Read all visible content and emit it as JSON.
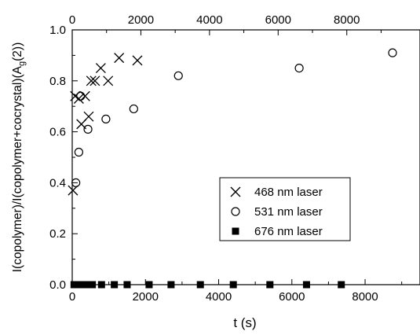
{
  "chart_data": {
    "type": "scatter",
    "xlabel": "t (s)",
    "ylabel": "I(copolymer)/I(copolymer+cocrystal)(A",
    "ylabel_sub": "g",
    "ylabel_suffix": "(2))",
    "xlim": [
      0,
      9500
    ],
    "ylim": [
      0.0,
      1.0
    ],
    "x_ticks": [
      0,
      2000,
      4000,
      6000,
      8000
    ],
    "x_tick_labels": [
      "0",
      "2000",
      "4000",
      "6000",
      "8000"
    ],
    "top_x_ticks": [
      0,
      2000,
      4000,
      6000,
      8000
    ],
    "top_x_tick_labels": [
      "0",
      "2000",
      "4000",
      "6000",
      "8000"
    ],
    "top_x_scale": 0.9375,
    "y_ticks": [
      0.0,
      0.2,
      0.4,
      0.6,
      0.8,
      1.0
    ],
    "y_tick_labels": [
      "0.0",
      "0.2",
      "0.4",
      "0.6",
      "0.8",
      "1.0"
    ],
    "grid": false,
    "legend_position": "center-right",
    "series": [
      {
        "name": "468 nm laser",
        "marker": "x",
        "color": "#000000",
        "points": [
          [
            20,
            0.37
          ],
          [
            80,
            0.74
          ],
          [
            180,
            0.73
          ],
          [
            250,
            0.63
          ],
          [
            350,
            0.74
          ],
          [
            450,
            0.66
          ],
          [
            520,
            0.8
          ],
          [
            620,
            0.8
          ],
          [
            780,
            0.85
          ],
          [
            980,
            0.8
          ],
          [
            1280,
            0.89
          ],
          [
            1780,
            0.88
          ]
        ]
      },
      {
        "name": "531 nm laser",
        "marker": "circle",
        "color": "#000000",
        "points": [
          [
            100,
            0.4
          ],
          [
            180,
            0.52
          ],
          [
            230,
            0.74
          ],
          [
            430,
            0.61
          ],
          [
            920,
            0.65
          ],
          [
            1680,
            0.69
          ],
          [
            2900,
            0.82
          ],
          [
            6200,
            0.85
          ],
          [
            8750,
            0.91
          ]
        ]
      },
      {
        "name": "676 nm laser",
        "marker": "square",
        "color": "#000000",
        "points": [
          [
            50,
            0.0
          ],
          [
            120,
            0.0
          ],
          [
            200,
            0.0
          ],
          [
            300,
            0.0
          ],
          [
            380,
            0.0
          ],
          [
            450,
            0.0
          ],
          [
            550,
            0.0
          ],
          [
            800,
            0.0
          ],
          [
            1150,
            0.0
          ],
          [
            1500,
            0.0
          ],
          [
            2100,
            0.0
          ],
          [
            2700,
            0.0
          ],
          [
            3500,
            0.0
          ],
          [
            4400,
            0.0
          ],
          [
            5400,
            0.0
          ],
          [
            6400,
            0.0
          ],
          [
            7350,
            0.0
          ]
        ]
      }
    ]
  }
}
